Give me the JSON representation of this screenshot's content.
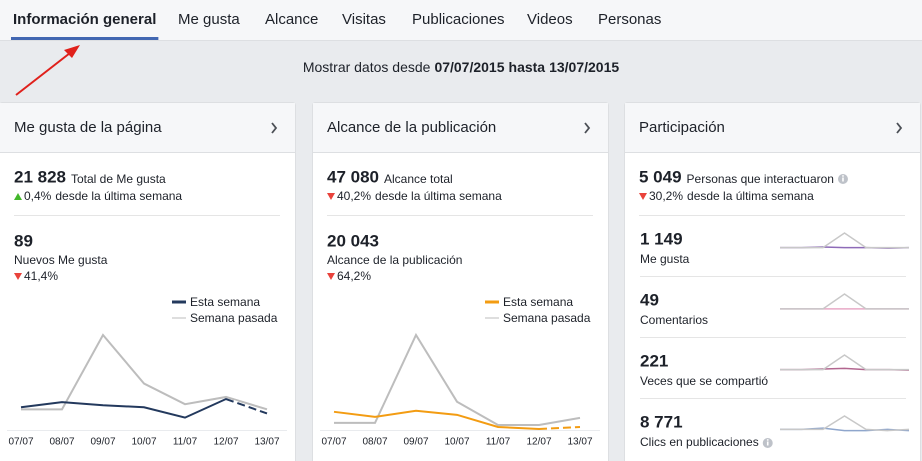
{
  "tabs": [
    "Información general",
    "Me gusta",
    "Alcance",
    "Visitas",
    "Publicaciones",
    "Videos",
    "Personas"
  ],
  "active_tab": 0,
  "date_range": {
    "prefix": "Mostrar datos desde",
    "start": "07/07/2015",
    "connector": "hasta",
    "end": "13/07/2015"
  },
  "panels": [
    {
      "title": "Me gusta de la página",
      "summary": {
        "value": "21 828",
        "label": "Total de Me gusta",
        "change": "0,4%",
        "direction": "up",
        "change_note": "desde la última semana"
      },
      "detail": {
        "value": "89",
        "label": "Nuevos Me gusta",
        "change": "41,4%",
        "direction": "down"
      },
      "chart": {
        "type": "line",
        "categories": [
          "07/07",
          "08/07",
          "09/07",
          "10/07",
          "11/07",
          "12/07",
          "13/07"
        ],
        "series": [
          {
            "name": "Esta semana",
            "color": "#23395d",
            "dashed_last": true,
            "values": [
              22,
              27,
              24,
              22,
              12,
              30,
              16
            ]
          },
          {
            "name": "Semana pasada",
            "color": "#bdbdbd",
            "dashed_last": false,
            "values": [
              20,
              20,
              92,
              45,
              25,
              32,
              20
            ]
          }
        ]
      }
    },
    {
      "title": "Alcance de la publicación",
      "summary": {
        "value": "47 080",
        "label": "Alcance total",
        "change": "40,2%",
        "direction": "down",
        "change_note": "desde la última semana"
      },
      "detail": {
        "value": "20 043",
        "label": "Alcance de la publicación",
        "change": "64,2%",
        "direction": "down"
      },
      "chart": {
        "type": "line",
        "categories": [
          "07/07",
          "08/07",
          "09/07",
          "10/07",
          "11/07",
          "12/07",
          "13/07"
        ],
        "series": [
          {
            "name": "Esta semana",
            "color": "#f39c12",
            "dashed_last": true,
            "values": [
              18,
              13,
              19,
              15,
              3,
              1,
              3
            ]
          },
          {
            "name": "Semana pasada",
            "color": "#bdbdbd",
            "dashed_last": false,
            "values": [
              7,
              7,
              94,
              28,
              5,
              5,
              12
            ]
          }
        ]
      }
    },
    {
      "title": "Participación",
      "summary": {
        "value": "5 049",
        "label": "Personas que interactuaron",
        "info": true,
        "change": "30,2%",
        "direction": "down",
        "change_note": "desde la última semana"
      },
      "rows": [
        {
          "value": "1 149",
          "label": "Me gusta",
          "info": false,
          "chart": {
            "type": "line",
            "series": [
              {
                "color": "#c8c8c8",
                "values": [
                  2,
                  2,
                  2,
                  14,
                  2,
                  2,
                  2
                ]
              },
              {
                "color": "#8e6bb8",
                "values": [
                  2,
                  2,
                  2.5,
                  2,
                  2,
                  1.5,
                  2
                ]
              }
            ]
          }
        },
        {
          "value": "49",
          "label": "Comentarios",
          "info": false,
          "chart": {
            "type": "line",
            "series": [
              {
                "color": "#c8c8c8",
                "values": [
                  2,
                  2,
                  2,
                  16,
                  2,
                  2,
                  2
                ]
              },
              {
                "color": "#e8a9c6",
                "values": [
                  2,
                  2,
                  2,
                  2,
                  2,
                  2,
                  2
                ]
              }
            ]
          }
        },
        {
          "value": "221",
          "label": "Veces que se compartió",
          "info": false,
          "chart": {
            "type": "line",
            "series": [
              {
                "color": "#c8c8c8",
                "values": [
                  2,
                  2,
                  2,
                  14,
                  2,
                  2,
                  2
                ]
              },
              {
                "color": "#b2668f",
                "values": [
                  2,
                  2,
                  2.5,
                  3,
                  2,
                  2,
                  1.5
                ]
              }
            ]
          }
        },
        {
          "value": "8 771",
          "label": "Clics en publicaciones",
          "info": true,
          "chart": {
            "type": "line",
            "series": [
              {
                "color": "#c8c8c8",
                "values": [
                  3,
                  3,
                  3,
                  14,
                  3,
                  2,
                  3
                ]
              },
              {
                "color": "#8fa6cc",
                "values": [
                  3,
                  3,
                  4,
                  2,
                  2,
                  3,
                  2
                ]
              }
            ]
          }
        }
      ]
    }
  ]
}
